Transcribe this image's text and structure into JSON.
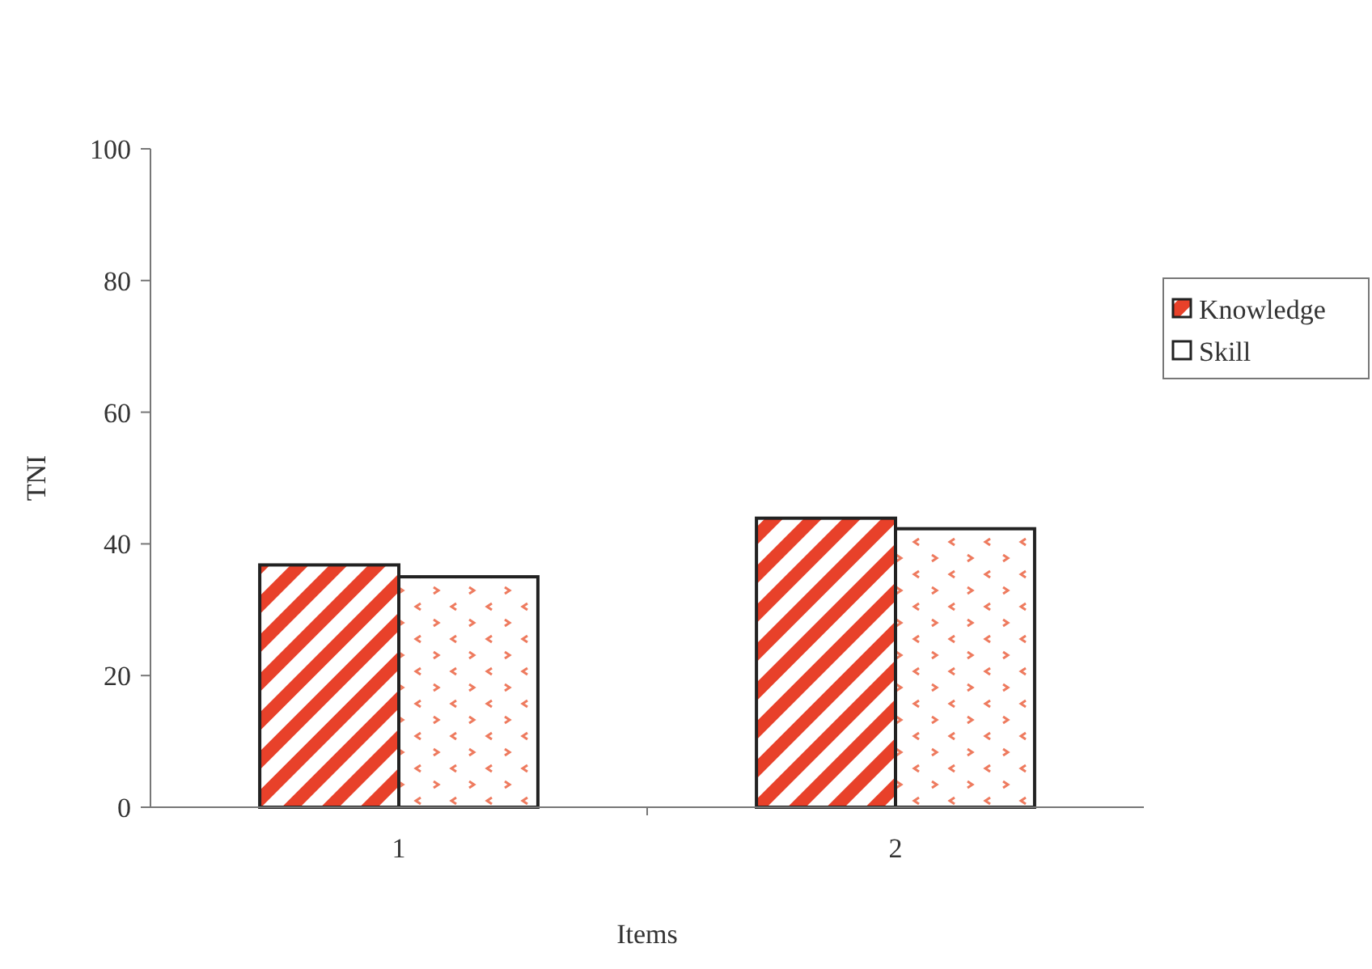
{
  "chart_data": {
    "type": "bar",
    "xlabel": "Items",
    "ylabel": "TNI",
    "categories": [
      "1",
      "2"
    ],
    "series": [
      {
        "name": "Knowledge",
        "color": "#e8412a",
        "values": [
          36.8,
          43.9
        ]
      },
      {
        "name": "Skill",
        "color": "#ee7a5e",
        "values": [
          35,
          42.3
        ]
      }
    ],
    "ylim": [
      0,
      100
    ],
    "yticks": [
      0,
      20,
      40,
      60,
      80,
      100
    ],
    "grid": false,
    "legend": "right"
  }
}
